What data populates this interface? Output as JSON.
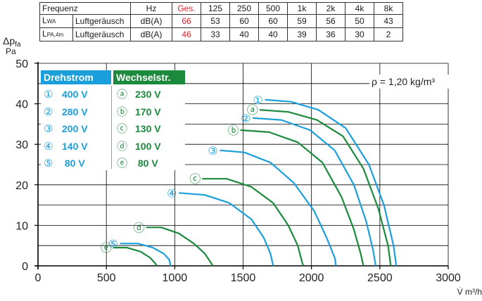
{
  "table": {
    "header": [
      "Frequenz",
      "Hz",
      "Ges.",
      "125",
      "250",
      "500",
      "1k",
      "2k",
      "4k",
      "8k"
    ],
    "rows": [
      {
        "sym": "L",
        "sub": "WA",
        "label": "Luftgeräusch",
        "unit": "dB(A)",
        "ges": "66",
        "values": [
          "53",
          "60",
          "60",
          "59",
          "56",
          "50",
          "43"
        ]
      },
      {
        "sym": "L",
        "sub": "PA,4m",
        "label": "Luftgeräusch",
        "unit": "dB(A)",
        "ges": "46",
        "values": [
          "33",
          "40",
          "40",
          "39",
          "36",
          "30",
          "2"
        ]
      }
    ]
  },
  "colors": {
    "drehstrom": "#1a9fdc",
    "wechselstrom": "#1b8a3c",
    "table_red": "#d9232e",
    "grid": "#000000"
  },
  "legend": {
    "drehstrom": {
      "title": "Drehstrom",
      "items": [
        {
          "marker": "①",
          "label": "400 V"
        },
        {
          "marker": "②",
          "label": "280 V"
        },
        {
          "marker": "③",
          "label": "200 V"
        },
        {
          "marker": "④",
          "label": "140 V"
        },
        {
          "marker": "⑤",
          "label": " 80 V"
        }
      ]
    },
    "wechselstrom": {
      "title": "Wechselstr.",
      "items": [
        {
          "marker": "ⓐ",
          "label": "230 V"
        },
        {
          "marker": "ⓑ",
          "label": "170 V"
        },
        {
          "marker": "ⓒ",
          "label": "130 V"
        },
        {
          "marker": "ⓓ",
          "label": "100 V"
        },
        {
          "marker": "ⓔ",
          "label": " 80 V"
        }
      ]
    }
  },
  "chart_data": {
    "type": "line",
    "ylabel": "Δp",
    "ylabel_sub": "fa",
    "yunit": "Pa",
    "xlabel": "V̇ m³/h",
    "annotation": "ρ = 1,20 kg/m³",
    "xlim": [
      0,
      3000
    ],
    "ylim": [
      0,
      50
    ],
    "xticks": [
      0,
      500,
      1000,
      1500,
      2000,
      2500,
      3000
    ],
    "yticks": [
      0,
      10,
      20,
      30,
      40,
      50
    ],
    "series": [
      {
        "name": "①",
        "color": "drehstrom",
        "points": [
          [
            1660,
            41
          ],
          [
            1850,
            40.5
          ],
          [
            2050,
            38.5
          ],
          [
            2250,
            34
          ],
          [
            2420,
            25
          ],
          [
            2530,
            15
          ],
          [
            2600,
            5
          ],
          [
            2620,
            0
          ]
        ]
      },
      {
        "name": "ⓐ",
        "color": "wechselstrom",
        "points": [
          [
            1620,
            38.5
          ],
          [
            1830,
            38
          ],
          [
            2040,
            36
          ],
          [
            2230,
            32
          ],
          [
            2380,
            24
          ],
          [
            2490,
            14
          ],
          [
            2560,
            5
          ],
          [
            2580,
            0
          ]
        ]
      },
      {
        "name": "②",
        "color": "drehstrom",
        "points": [
          [
            1570,
            36.5
          ],
          [
            1780,
            36
          ],
          [
            1990,
            33.5
          ],
          [
            2170,
            28.5
          ],
          [
            2310,
            20
          ],
          [
            2400,
            11
          ],
          [
            2450,
            4
          ],
          [
            2470,
            0
          ]
        ]
      },
      {
        "name": "ⓑ",
        "color": "wechselstrom",
        "points": [
          [
            1480,
            33.5
          ],
          [
            1690,
            33
          ],
          [
            1900,
            30.5
          ],
          [
            2080,
            25.5
          ],
          [
            2220,
            17
          ],
          [
            2310,
            9
          ],
          [
            2360,
            3
          ],
          [
            2380,
            0
          ]
        ]
      },
      {
        "name": "③",
        "color": "drehstrom",
        "points": [
          [
            1330,
            28.5
          ],
          [
            1510,
            28
          ],
          [
            1700,
            25.5
          ],
          [
            1870,
            20.5
          ],
          [
            2020,
            13.5
          ],
          [
            2110,
            7
          ],
          [
            2170,
            2
          ],
          [
            2180,
            0
          ]
        ]
      },
      {
        "name": "ⓒ",
        "color": "wechselstrom",
        "points": [
          [
            1200,
            21.5
          ],
          [
            1380,
            21.5
          ],
          [
            1560,
            19.5
          ],
          [
            1720,
            15.5
          ],
          [
            1830,
            10
          ],
          [
            1900,
            5
          ],
          [
            1930,
            1
          ],
          [
            1940,
            0
          ]
        ]
      },
      {
        "name": "④",
        "color": "drehstrom",
        "points": [
          [
            1030,
            18
          ],
          [
            1220,
            17.5
          ],
          [
            1400,
            15.5
          ],
          [
            1560,
            11.5
          ],
          [
            1650,
            7
          ],
          [
            1700,
            3
          ],
          [
            1720,
            0
          ]
        ]
      },
      {
        "name": "ⓓ",
        "color": "wechselstrom",
        "points": [
          [
            790,
            9.5
          ],
          [
            900,
            9.5
          ],
          [
            1030,
            8
          ],
          [
            1140,
            5.5
          ],
          [
            1220,
            3
          ],
          [
            1270,
            0.5
          ],
          [
            1280,
            0
          ]
        ]
      },
      {
        "name": "⑤",
        "color": "drehstrom",
        "points": [
          [
            600,
            5.5
          ],
          [
            730,
            5.5
          ],
          [
            840,
            4.5
          ],
          [
            920,
            3
          ],
          [
            960,
            1.5
          ],
          [
            970,
            0
          ]
        ]
      },
      {
        "name": "ⓔ",
        "color": "wechselstrom",
        "points": [
          [
            550,
            4.5
          ],
          [
            650,
            4.5
          ],
          [
            750,
            3.5
          ],
          [
            820,
            2
          ],
          [
            860,
            0.5
          ],
          [
            870,
            0
          ]
        ]
      }
    ]
  }
}
